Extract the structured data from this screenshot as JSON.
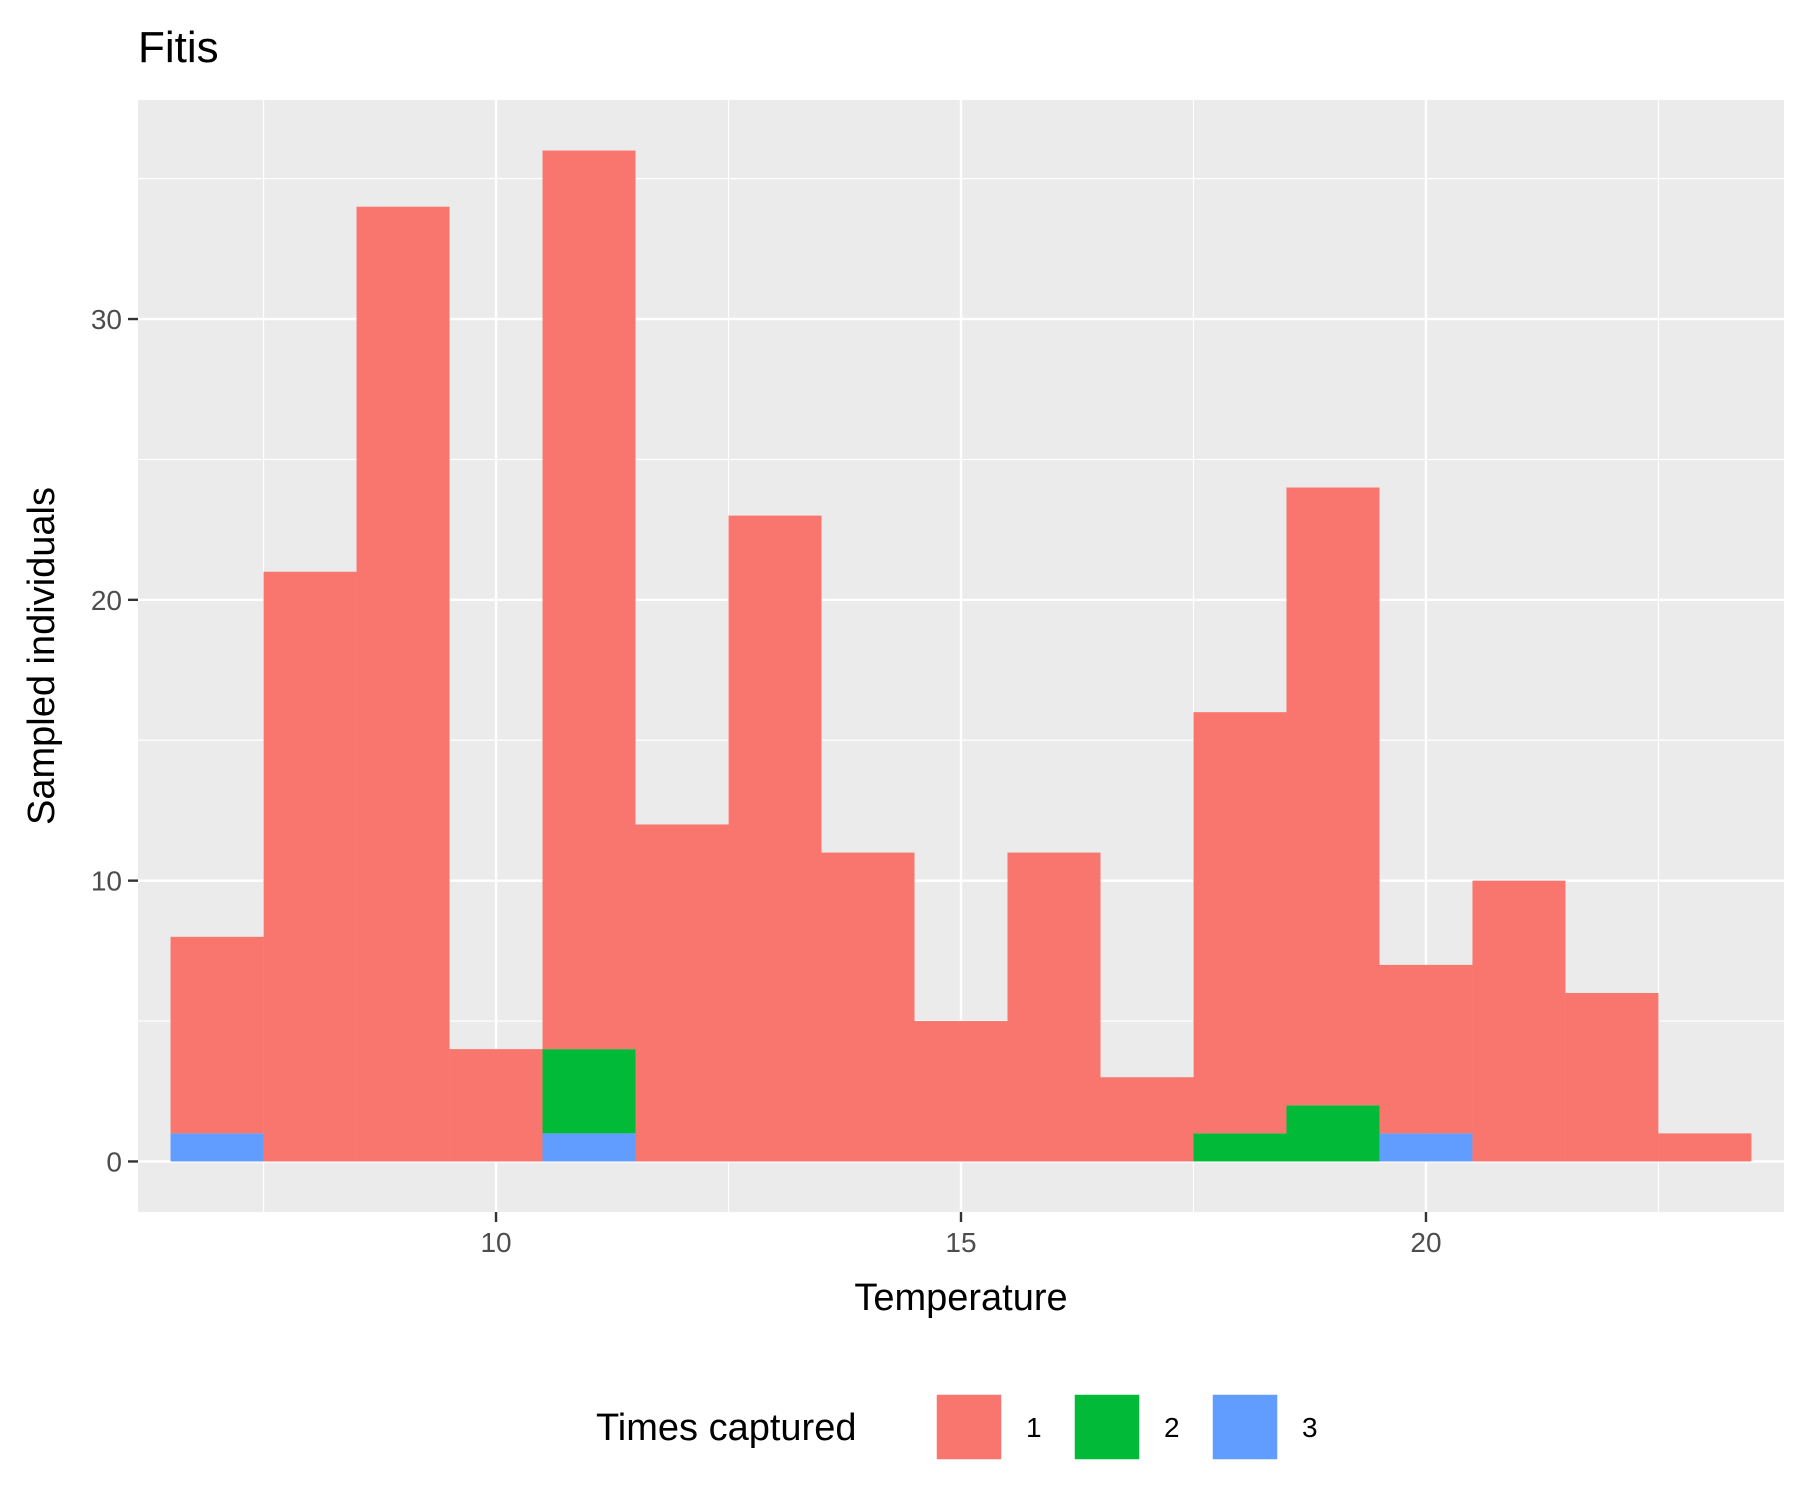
{
  "chart_data": {
    "type": "bar",
    "title": "Fitis",
    "xlabel": "Temperature",
    "ylabel": "Sampled individuals",
    "xlim": [
      6.15,
      23.85
    ],
    "ylim": [
      -1.8,
      37.8
    ],
    "x_ticks": [
      10,
      15,
      20
    ],
    "y_ticks": [
      0,
      10,
      20,
      30
    ],
    "grid": true,
    "legend_position": "bottom",
    "legend_title": "Times captured",
    "bin_width": 1,
    "x": [
      7,
      8,
      9,
      10,
      11,
      12,
      13,
      14,
      15,
      16,
      17,
      18,
      19,
      20,
      21,
      22,
      23
    ],
    "stacked": true,
    "series": [
      {
        "name": "1",
        "color": "#F8766D",
        "values": [
          7,
          21,
          34,
          4,
          32,
          12,
          23,
          11,
          5,
          11,
          3,
          15,
          22,
          6,
          10,
          6,
          1
        ]
      },
      {
        "name": "2",
        "color": "#00BA38",
        "values": [
          0,
          0,
          0,
          0,
          3,
          0,
          0,
          0,
          0,
          0,
          0,
          1,
          2,
          0,
          0,
          0,
          0
        ]
      },
      {
        "name": "3",
        "color": "#619CFF",
        "values": [
          1,
          0,
          0,
          0,
          1,
          0,
          0,
          0,
          0,
          0,
          0,
          0,
          0,
          1,
          0,
          0,
          0
        ]
      }
    ]
  }
}
